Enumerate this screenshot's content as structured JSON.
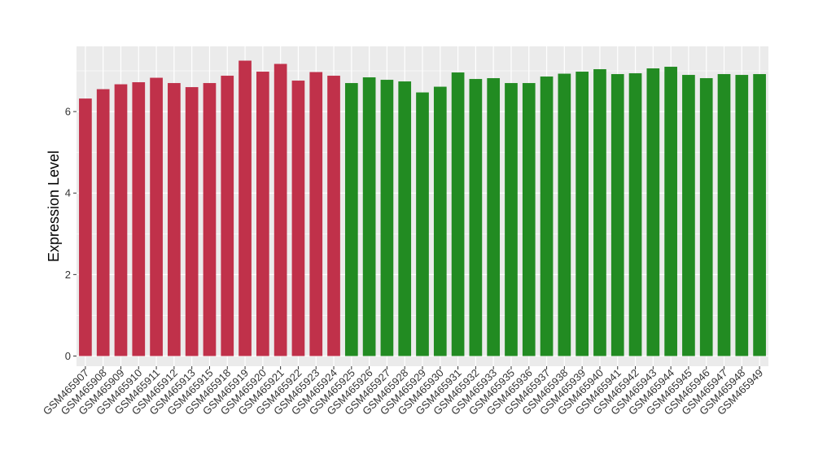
{
  "chart_data": {
    "type": "bar",
    "title": "",
    "xlabel": "",
    "ylabel": "Expression Level",
    "ylim": [
      -0.25,
      7.6
    ],
    "yticks": [
      0,
      2,
      4,
      6
    ],
    "grid": true,
    "legend": "none",
    "background_color": "#ebebeb",
    "grid_color": "#ffffff",
    "categories": [
      "GSM465907",
      "GSM465908",
      "GSM465909",
      "GSM465910",
      "GSM465911",
      "GSM465912",
      "GSM465913",
      "GSM465915",
      "GSM465918",
      "GSM465919",
      "GSM465920",
      "GSM465921",
      "GSM465922",
      "GSM465923",
      "GSM465924",
      "GSM465925",
      "GSM465926",
      "GSM465927",
      "GSM465928",
      "GSM465929",
      "GSM465930",
      "GSM465931",
      "GSM465932",
      "GSM465933",
      "GSM465935",
      "GSM465936",
      "GSM465937",
      "GSM465938",
      "GSM465939",
      "GSM465940",
      "GSM465941",
      "GSM465942",
      "GSM465943",
      "GSM465944",
      "GSM465945",
      "GSM465946",
      "GSM465947",
      "GSM465948",
      "GSM465949"
    ],
    "values": [
      6.32,
      6.55,
      6.67,
      6.72,
      6.83,
      6.7,
      6.6,
      6.7,
      6.88,
      7.25,
      6.98,
      7.17,
      6.76,
      6.97,
      6.88,
      6.7,
      6.84,
      6.78,
      6.74,
      6.47,
      6.61,
      6.96,
      6.8,
      6.82,
      6.7,
      6.7,
      6.86,
      6.93,
      6.98,
      7.04,
      6.92,
      6.94,
      7.06,
      7.1,
      6.9,
      6.82,
      6.92,
      6.9,
      6.92
    ],
    "colors": [
      "#c0314a",
      "#c0314a",
      "#c0314a",
      "#c0314a",
      "#c0314a",
      "#c0314a",
      "#c0314a",
      "#c0314a",
      "#c0314a",
      "#c0314a",
      "#c0314a",
      "#c0314a",
      "#c0314a",
      "#c0314a",
      "#c0314a",
      "#228b22",
      "#228b22",
      "#228b22",
      "#228b22",
      "#228b22",
      "#228b22",
      "#228b22",
      "#228b22",
      "#228b22",
      "#228b22",
      "#228b22",
      "#228b22",
      "#228b22",
      "#228b22",
      "#228b22",
      "#228b22",
      "#228b22",
      "#228b22",
      "#228b22",
      "#228b22",
      "#228b22",
      "#228b22",
      "#228b22",
      "#228b22"
    ]
  }
}
